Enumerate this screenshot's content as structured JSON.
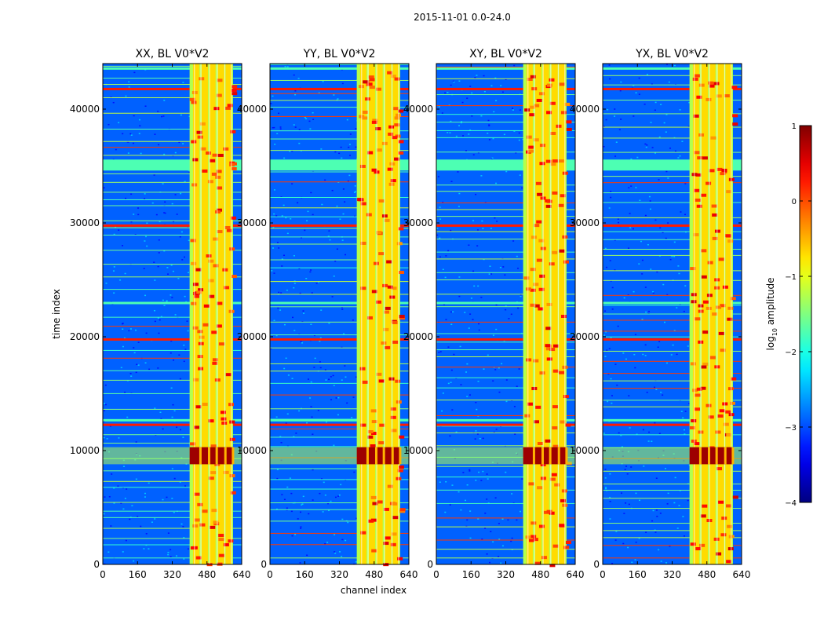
{
  "chart_data": {
    "type": "heatmap",
    "suptitle": "2015-11-01 0.0-24.0",
    "xlabel": "channel index",
    "ylabel": "time index",
    "xlim": [
      0,
      640
    ],
    "ylim": [
      0,
      44000
    ],
    "xticks": [
      "0",
      "160",
      "320",
      "480",
      "640"
    ],
    "x_tick_values": [
      0,
      160,
      320,
      480,
      640
    ],
    "yticks": [
      "0",
      "10000",
      "20000",
      "30000",
      "40000"
    ],
    "y_tick_values": [
      0,
      10000,
      20000,
      30000,
      40000
    ],
    "panels": [
      {
        "title": "XX, BL V0*V2"
      },
      {
        "title": "YY, BL V0*V2"
      },
      {
        "title": "XY, BL V0*V2"
      },
      {
        "title": "YX, BL V0*V2"
      }
    ],
    "colorbar": {
      "label_main": "log",
      "label_sub": "10",
      "label_rest": " amplitude",
      "range": [
        -4,
        1
      ],
      "ticks": [
        "1",
        "0",
        "−1",
        "−2",
        "−3",
        "−4"
      ],
      "tick_values": [
        1,
        0,
        -1,
        -2,
        -3,
        -4
      ],
      "colormap": "jet"
    },
    "features": {
      "band_channels": [
        400,
        600
      ],
      "bright_channel_columns": [
        430,
        470,
        505,
        545,
        580
      ],
      "strong_rfi_time_band": [
        8800,
        10300
      ],
      "broadband_rows": [
        12300,
        12700,
        19800,
        23000,
        29800,
        35500,
        41800,
        43600
      ]
    }
  }
}
